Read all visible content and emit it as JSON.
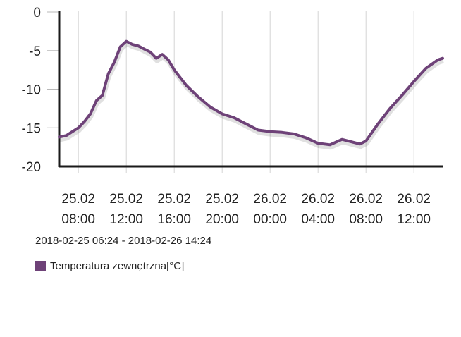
{
  "chart_data": {
    "type": "line",
    "title": "",
    "xlabel": "",
    "ylabel": "",
    "ylim": [
      -20,
      0
    ],
    "yticks": [
      "0",
      "-5",
      "-10",
      "-15",
      "-20"
    ],
    "xlim": [
      "2018-02-25 06:24",
      "2018-02-26 14:24"
    ],
    "xticks": [
      {
        "date": "25.02",
        "time": "08:00"
      },
      {
        "date": "25.02",
        "time": "12:00"
      },
      {
        "date": "25.02",
        "time": "16:00"
      },
      {
        "date": "25.02",
        "time": "20:00"
      },
      {
        "date": "26.02",
        "time": "00:00"
      },
      {
        "date": "26.02",
        "time": "04:00"
      },
      {
        "date": "26.02",
        "time": "08:00"
      },
      {
        "date": "26.02",
        "time": "12:00"
      }
    ],
    "grid": true,
    "legend": "bottom-left",
    "series": [
      {
        "name": "Temperatura zewnętrzna[°C]",
        "color": "#6e4278",
        "x": [
          "2018-02-25 06:24",
          "2018-02-25 07:00",
          "2018-02-25 07:30",
          "2018-02-25 08:00",
          "2018-02-25 08:30",
          "2018-02-25 09:00",
          "2018-02-25 09:30",
          "2018-02-25 10:00",
          "2018-02-25 10:30",
          "2018-02-25 11:00",
          "2018-02-25 11:30",
          "2018-02-25 12:00",
          "2018-02-25 12:30",
          "2018-02-25 13:00",
          "2018-02-25 13:30",
          "2018-02-25 14:00",
          "2018-02-25 14:30",
          "2018-02-25 15:00",
          "2018-02-25 15:30",
          "2018-02-25 16:00",
          "2018-02-25 17:00",
          "2018-02-25 18:00",
          "2018-02-25 19:00",
          "2018-02-25 20:00",
          "2018-02-25 21:00",
          "2018-02-25 22:00",
          "2018-02-25 23:00",
          "2018-02-26 00:00",
          "2018-02-26 01:00",
          "2018-02-26 02:00",
          "2018-02-26 03:00",
          "2018-02-26 04:00",
          "2018-02-26 05:00",
          "2018-02-26 06:00",
          "2018-02-26 07:00",
          "2018-02-26 07:30",
          "2018-02-26 08:00",
          "2018-02-26 09:00",
          "2018-02-26 10:00",
          "2018-02-26 11:00",
          "2018-02-26 12:00",
          "2018-02-26 13:00",
          "2018-02-26 14:00",
          "2018-02-26 14:24"
        ],
        "values": [
          -16.2,
          -16.0,
          -15.5,
          -15.0,
          -14.2,
          -13.2,
          -11.5,
          -10.8,
          -8.0,
          -6.5,
          -4.5,
          -3.8,
          -4.2,
          -4.4,
          -4.8,
          -5.2,
          -6.0,
          -5.5,
          -6.2,
          -7.5,
          -9.5,
          -11.0,
          -12.3,
          -13.2,
          -13.7,
          -14.5,
          -15.3,
          -15.5,
          -15.6,
          -15.8,
          -16.3,
          -17.0,
          -17.2,
          -16.5,
          -16.9,
          -17.1,
          -16.7,
          -14.5,
          -12.5,
          -10.8,
          -9.0,
          -7.3,
          -6.2,
          -6.0
        ]
      }
    ]
  },
  "range_text": "2018-02-25 06:24 - 2018-02-26 14:24",
  "legend": {
    "label": "Temperatura zewnętrzna[°C]",
    "color": "#6e4278"
  }
}
